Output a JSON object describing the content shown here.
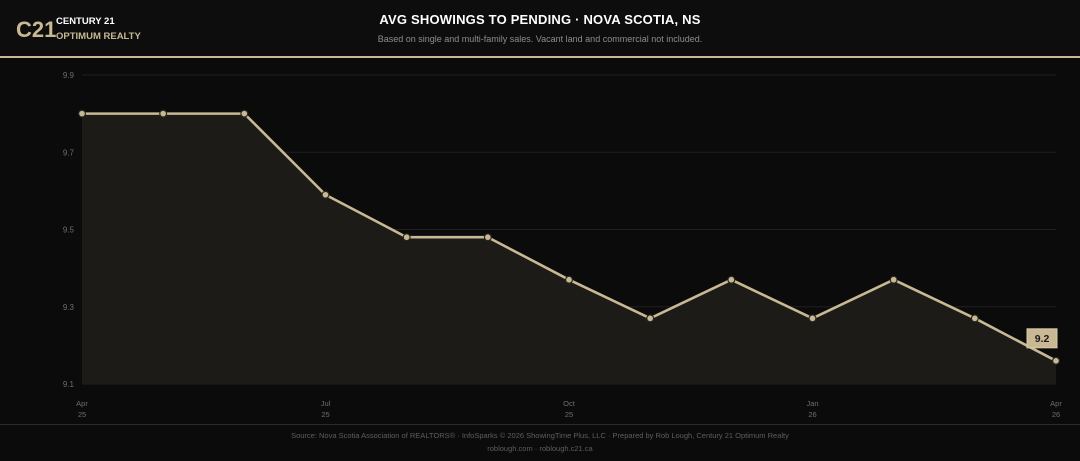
{
  "brand": {
    "mark": "C21",
    "line1": "CENTURY 21",
    "line2": "OPTIMUM REALTY"
  },
  "header": {
    "title": "AVG SHOWINGS TO PENDING  ·  NOVA SCOTIA, NS",
    "subtitle": "Based on single and multi-family sales. Vacant land and commercial not included."
  },
  "colors": {
    "accent": "#c8b994",
    "background": "#0b0b0b",
    "area_fill": "#1d1b17",
    "grid": "#1f1f1f"
  },
  "footer": {
    "source": "Source: Nova Scotia Association of REALTORS® · InfoSparks © 2026 ShowingTime Plus, LLC · Prepared by Rob Lough, Century 21 Optimum Realty",
    "links": "roblough.com · roblough.c21.ca"
  },
  "chart_data": {
    "type": "area",
    "title": "AVG SHOWINGS TO PENDING  ·  NOVA SCOTIA, NS",
    "xlabel": "",
    "ylabel": "",
    "ylim": [
      9.1,
      9.9
    ],
    "yticks": [
      9.1,
      9.3,
      9.5,
      9.7,
      9.9
    ],
    "x": [
      "2025-04",
      "2025-05",
      "2025-06",
      "2025-07",
      "2025-08",
      "2025-09",
      "2025-10",
      "2025-11",
      "2025-12",
      "2026-01",
      "2026-02",
      "2026-03",
      "2026-04"
    ],
    "xticks": [
      {
        "index": 0,
        "month": "Apr",
        "year": "25"
      },
      {
        "index": 3,
        "month": "Jul",
        "year": "25"
      },
      {
        "index": 6,
        "month": "Oct",
        "year": "25"
      },
      {
        "index": 9,
        "month": "Jan",
        "year": "26"
      },
      {
        "index": 12,
        "month": "Apr",
        "year": "26"
      }
    ],
    "series": [
      {
        "values": [
          9.8,
          9.8,
          9.8,
          9.59,
          9.48,
          9.48,
          9.37,
          9.27,
          9.37,
          9.27,
          9.37,
          9.27,
          9.16
        ]
      }
    ],
    "last_label": "9.2",
    "grid": true,
    "legend": "none"
  }
}
